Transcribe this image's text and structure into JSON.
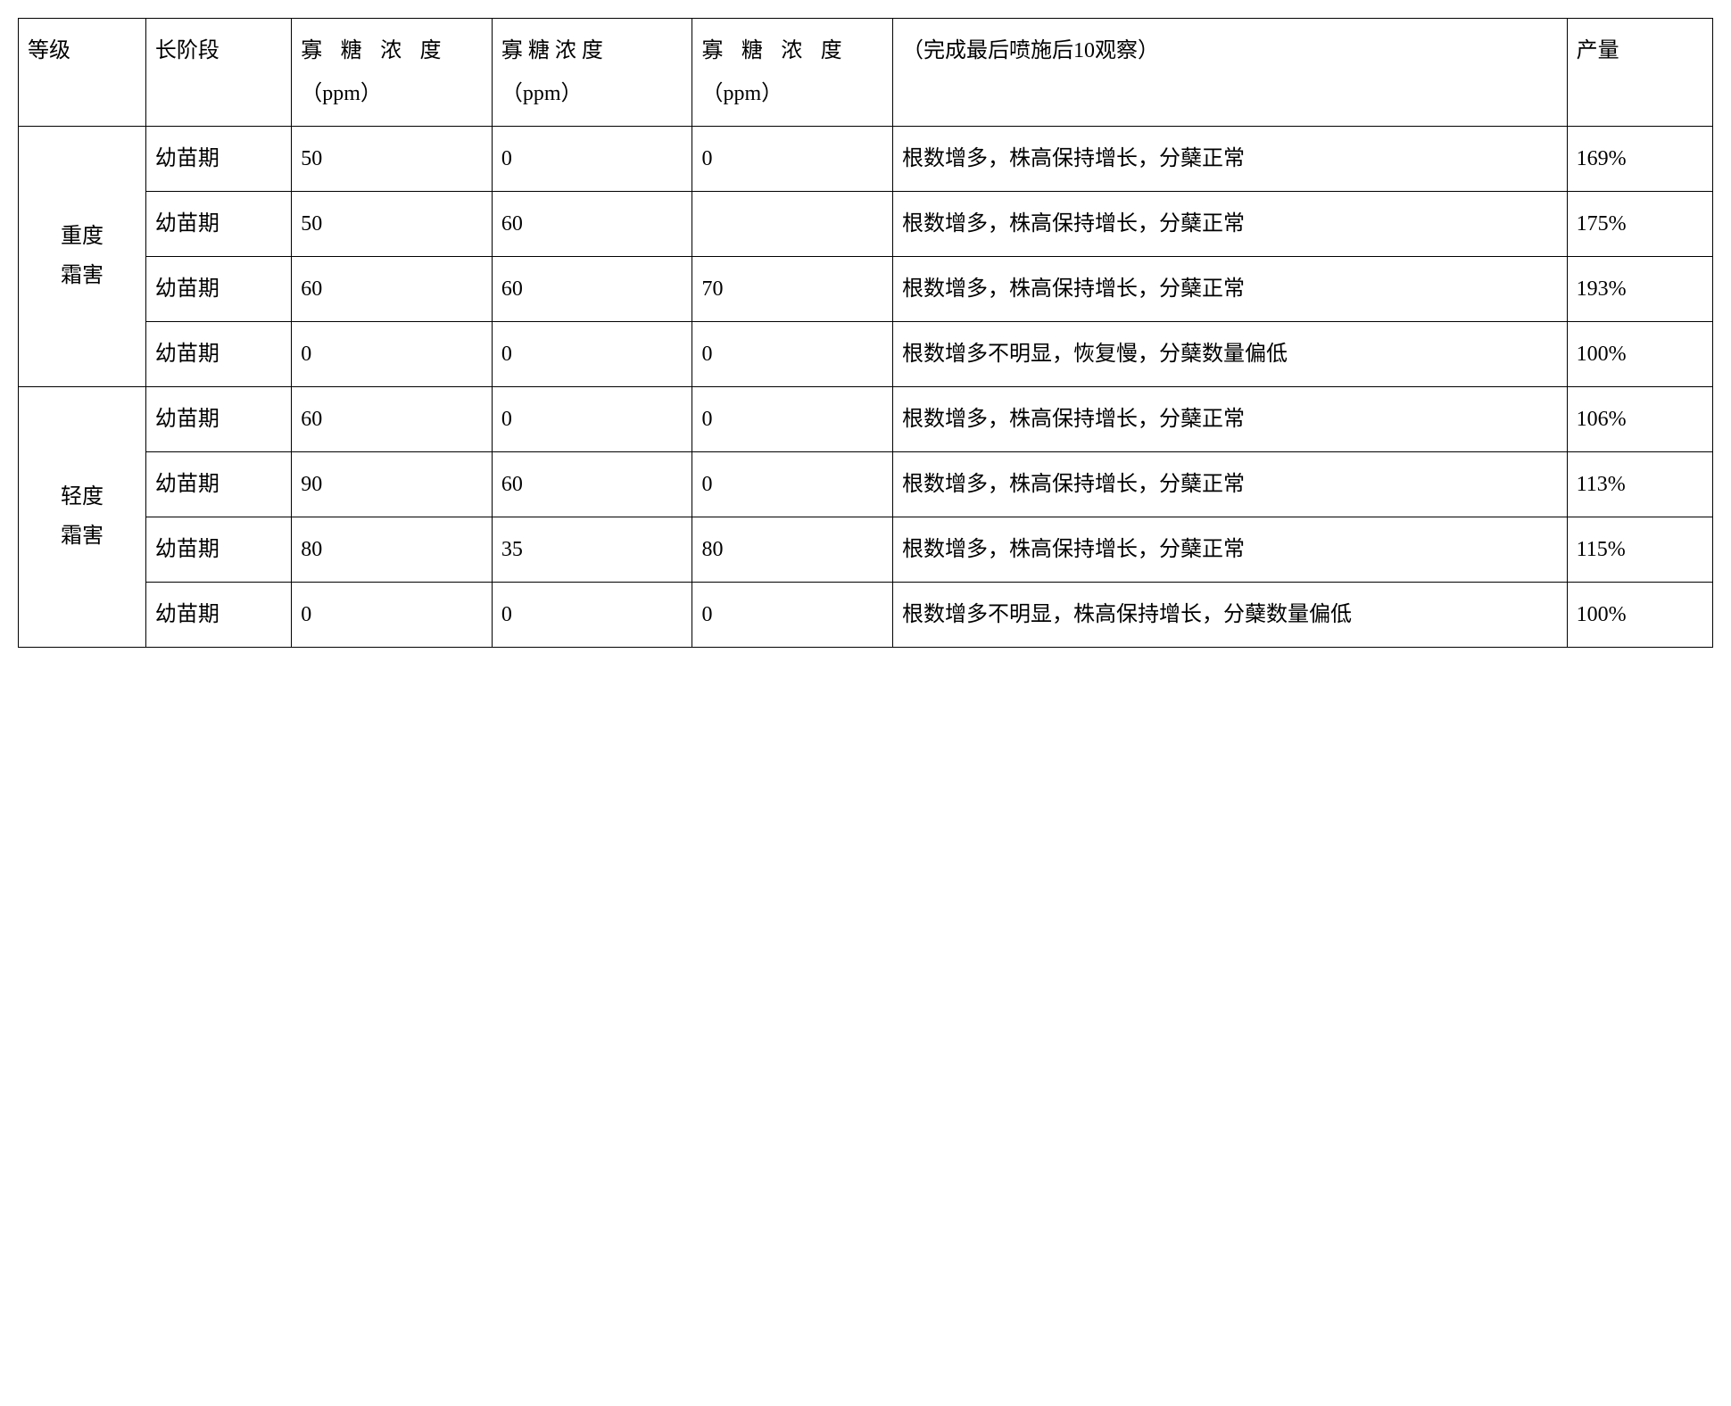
{
  "table": {
    "columns": [
      "等级",
      "长阶段",
      "寡糖浓度（ppm）",
      "寡糖浓度（ppm）",
      "寡糖浓度（ppm）",
      "（完成最后喷施后10观察）",
      "产量"
    ],
    "header_conc_line1": "寡 糖 浓 度",
    "header_conc_line2": "（ppm）",
    "col_widths_pct": [
      7,
      8,
      11,
      11,
      11,
      37,
      8
    ],
    "border_color": "#000000",
    "background_color": "#ffffff",
    "font_size_pt": 18,
    "line_height": 2.0,
    "groups": [
      {
        "level_label": "重度霜害",
        "rows": [
          {
            "stage": "幼苗期",
            "conc1": "50",
            "conc2": "0",
            "conc3": "0",
            "observation": "根数增多，株高保持增长，分蘖正常",
            "yield": "169%"
          },
          {
            "stage": "幼苗期",
            "conc1": "50",
            "conc2": "60",
            "conc3": "",
            "observation": "根数增多，株高保持增长，分蘖正常",
            "yield": "175%"
          },
          {
            "stage": "幼苗期",
            "conc1": "60",
            "conc2": "60",
            "conc3": "70",
            "observation": "根数增多，株高保持增长，分蘖正常",
            "yield": "193%"
          },
          {
            "stage": "幼苗期",
            "conc1": "0",
            "conc2": "0",
            "conc3": "0",
            "observation": "根数增多不明显，恢复慢，分蘖数量偏低",
            "yield": "100%"
          }
        ]
      },
      {
        "level_label": "轻度霜害",
        "rows": [
          {
            "stage": "幼苗期",
            "conc1": "60",
            "conc2": "0",
            "conc3": "0",
            "observation": "根数增多，株高保持增长，分蘖正常",
            "yield": "106%"
          },
          {
            "stage": "幼苗期",
            "conc1": "90",
            "conc2": "60",
            "conc3": "0",
            "observation": "根数增多，株高保持增长，分蘖正常",
            "yield": "113%"
          },
          {
            "stage": "幼苗期",
            "conc1": "80",
            "conc2": "35",
            "conc3": "80",
            "observation": "根数增多，株高保持增长，分蘖正常",
            "yield": "115%"
          },
          {
            "stage": "幼苗期",
            "conc1": "0",
            "conc2": "0",
            "conc3": "0",
            "observation": "根数增多不明显，株高保持增长，分蘖数量偏低",
            "yield": "100%"
          }
        ]
      }
    ]
  }
}
